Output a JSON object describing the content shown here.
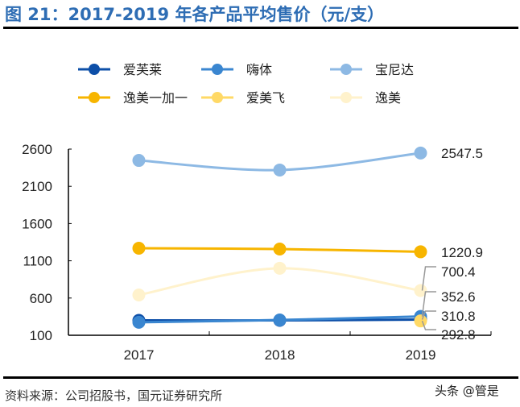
{
  "title": "图 21：2017-2019 年各产品平均售价（元/支）",
  "source": "资料来源：公司招股书，国元证券研究所",
  "watermark": "头条 @管是",
  "chart_data": {
    "type": "line",
    "categories": [
      "2017",
      "2018",
      "2019"
    ],
    "ylim": [
      100,
      2600
    ],
    "yticks": [
      100,
      600,
      1100,
      1600,
      2100,
      2600
    ],
    "grid": false,
    "legend_placement": "top",
    "series": [
      {
        "name": "爱芙莱",
        "color": "#0d4fa8",
        "values": [
          300,
          300,
          310.8
        ]
      },
      {
        "name": "嗨体",
        "color": "#3a86d0",
        "values": [
          275,
          305,
          352.6
        ]
      },
      {
        "name": "宝尼达",
        "color": "#8db9e4",
        "values": [
          2448,
          2319,
          2547.5
        ]
      },
      {
        "name": "逸美一加一",
        "color": "#f7b500",
        "values": [
          1269,
          1258,
          1220.9
        ]
      },
      {
        "name": "爱美飞",
        "color": "#ffd966",
        "values": [
          null,
          null,
          292.8
        ]
      },
      {
        "name": "逸美",
        "color": "#fff2cc",
        "values": [
          641,
          1000,
          700.4
        ]
      }
    ],
    "data_labels": [
      "2547.5",
      "1220.9",
      "700.4",
      "352.6",
      "310.8",
      "292.8"
    ]
  }
}
